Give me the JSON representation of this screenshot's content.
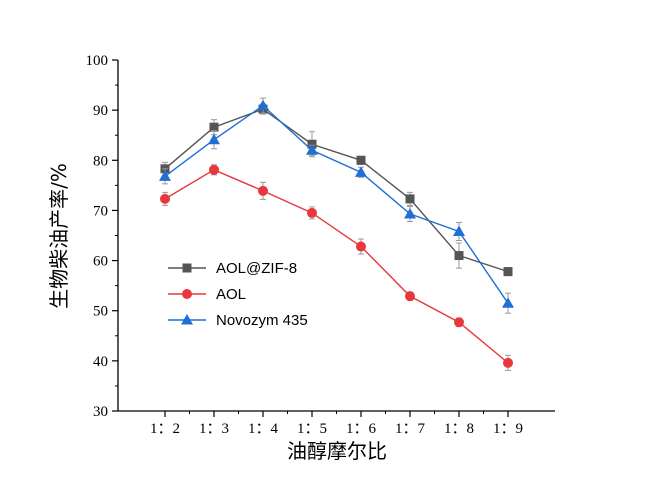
{
  "chart_data": {
    "type": "line",
    "xlabel": "油醇摩尔比",
    "ylabel": "生物柴油产率/%",
    "categories": [
      "1：2",
      "1：3",
      "1：4",
      "1：5",
      "1：6",
      "1：7",
      "1：8",
      "1：9"
    ],
    "ylim": [
      30,
      100
    ],
    "yticks": [
      30,
      40,
      50,
      60,
      70,
      80,
      90,
      100
    ],
    "grid": false,
    "legend_position": "center-left",
    "series": [
      {
        "name": "AOL@ZIF-8",
        "color": "#555555",
        "marker": "square",
        "values": [
          78.3,
          86.6,
          90.2,
          83.2,
          80.0,
          72.3,
          61.0,
          57.8
        ],
        "errors": [
          1.3,
          1.5,
          1.0,
          2.5,
          0.8,
          1.3,
          2.5,
          0.8
        ]
      },
      {
        "name": "AOL",
        "color": "#e8383d",
        "marker": "circle",
        "values": [
          72.3,
          78.1,
          73.9,
          69.5,
          62.8,
          52.9,
          47.7,
          39.6
        ],
        "errors": [
          1.3,
          1.0,
          1.7,
          1.2,
          1.5,
          0.8,
          0.8,
          1.5
        ]
      },
      {
        "name": "Novozym 435",
        "color": "#1f6fd6",
        "marker": "triangle",
        "values": [
          76.8,
          84.1,
          90.9,
          82.0,
          77.6,
          69.3,
          65.8,
          51.5
        ],
        "errors": [
          1.5,
          1.8,
          1.5,
          1.0,
          1.0,
          1.5,
          1.8,
          2.0
        ]
      }
    ]
  }
}
